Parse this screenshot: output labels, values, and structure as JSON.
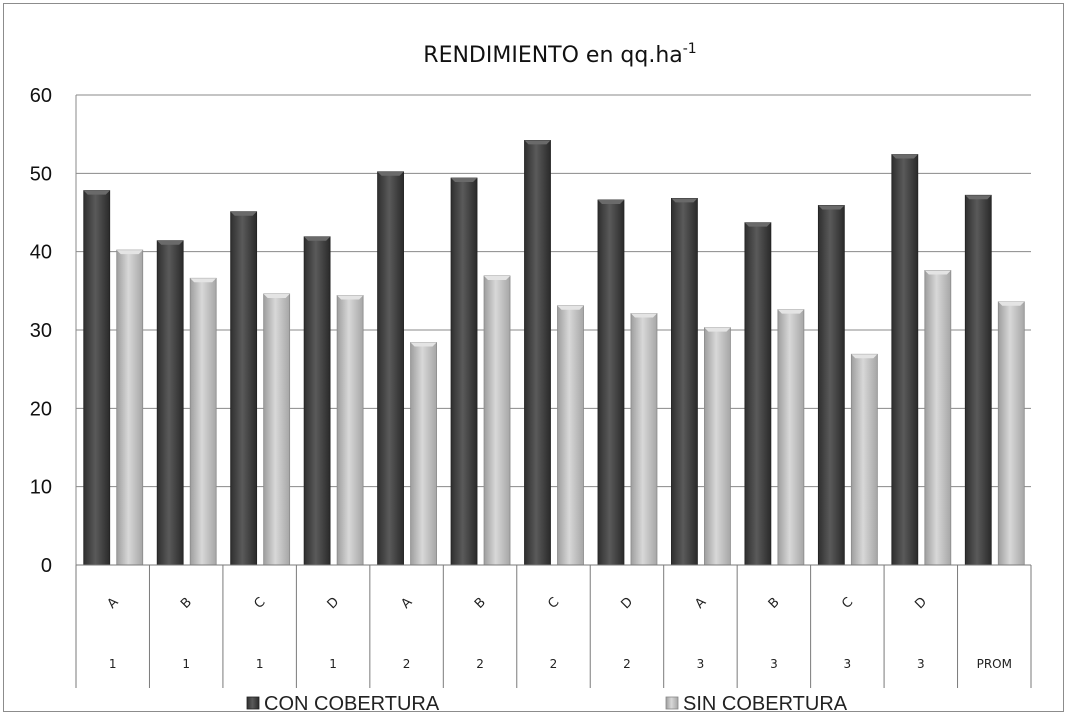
{
  "chart_data": {
    "type": "bar",
    "title": "RENDIMIENTO en qq.ha",
    "title_superscript": "-1",
    "xlabel": "",
    "ylabel": "",
    "ylim": [
      0,
      60
    ],
    "yticks": [
      "0",
      "10",
      "20",
      "30",
      "40",
      "50",
      "60"
    ],
    "grid": true,
    "legend_position": "bottom",
    "categories": [
      {
        "letter": "A",
        "group": "1"
      },
      {
        "letter": "B",
        "group": "1"
      },
      {
        "letter": "C",
        "group": "1"
      },
      {
        "letter": "D",
        "group": "1"
      },
      {
        "letter": "A",
        "group": "2"
      },
      {
        "letter": "B",
        "group": "2"
      },
      {
        "letter": "C",
        "group": "2"
      },
      {
        "letter": "D",
        "group": "2"
      },
      {
        "letter": "A",
        "group": "3"
      },
      {
        "letter": "B",
        "group": "3"
      },
      {
        "letter": "C",
        "group": "3"
      },
      {
        "letter": "D",
        "group": "3"
      },
      {
        "letter": "",
        "group": "PROM"
      }
    ],
    "series": [
      {
        "name": "CON COBERTURA",
        "color": "#4a4a4a",
        "values": [
          47.8,
          41.4,
          45.1,
          41.9,
          50.2,
          49.4,
          54.2,
          46.6,
          46.8,
          43.7,
          45.9,
          52.4,
          47.2
        ]
      },
      {
        "name": "SIN COBERTURA",
        "color": "#bdbdbd",
        "values": [
          40.2,
          36.6,
          34.6,
          34.4,
          28.4,
          36.9,
          33.1,
          32.1,
          30.3,
          32.6,
          26.9,
          37.6,
          33.6
        ]
      }
    ]
  }
}
